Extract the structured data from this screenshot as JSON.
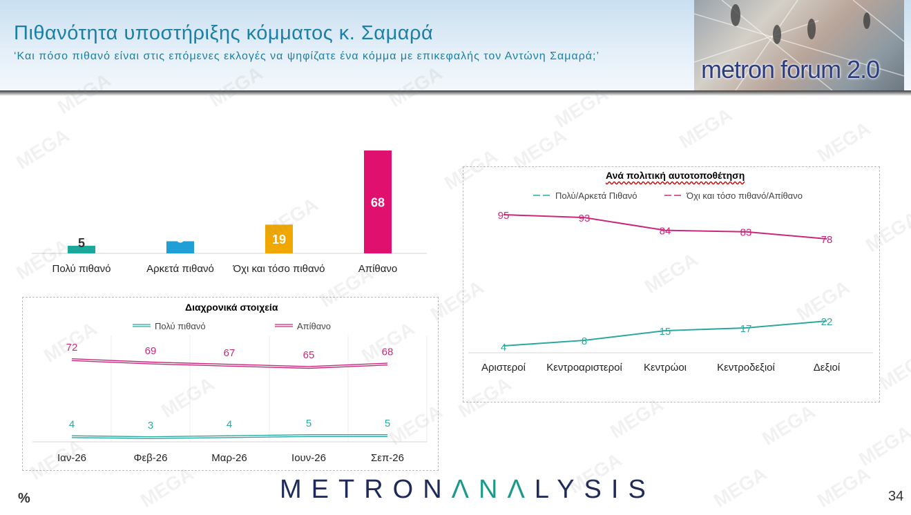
{
  "title": "Πιθανότητα υποστήριξης κόμματος κ. Σαμαρά",
  "subtitle": "‘Και πόσο πιθανό είναι στις επόμενες εκλογές να ψηφίζατε ένα κόμμα με επικεφαλής τον Αντώνη Σαμαρά;’",
  "logo_text": "metron forum 2.0",
  "brand": {
    "part1": "METRON",
    "part2": "ΛNΛ",
    "part3": "LYSIS"
  },
  "percent_sign": "%",
  "page_number": "34",
  "watermark": "MEGA",
  "chart_data": [
    {
      "type": "bar",
      "title": "",
      "categories": [
        "Πολύ πιθανό",
        "Αρκετά πιθανό",
        "Όχι και τόσο πιθανό",
        "Απίθανο"
      ],
      "values": [
        5,
        8,
        19,
        68
      ],
      "colors": [
        "#1aa89a",
        "#1f9fd6",
        "#f0a800",
        "#e0106e"
      ],
      "ylim": [
        0,
        68
      ]
    },
    {
      "type": "line",
      "title": "Διαχρονικά στοιχεία",
      "categories": [
        "Ιαν-26",
        "Φεβ-26",
        "Μαρ-26",
        "Ιουν-26",
        "Σεπ-26"
      ],
      "series": [
        {
          "name": "Πολύ πιθανό",
          "values": [
            4,
            3,
            4,
            5,
            5
          ],
          "color": "#2aa8a0"
        },
        {
          "name": "Απίθανο",
          "values": [
            72,
            69,
            67,
            65,
            68
          ],
          "color": "#c8287a"
        }
      ],
      "grid": "vertical",
      "legend": "top"
    },
    {
      "type": "line",
      "title": "Ανά πολιτική αυτοτοποθέτηση",
      "categories": [
        "Αριστεροί",
        "Κεντροαριστεροί",
        "Κεντρώοι",
        "Κεντροδεξιοί",
        "Δεξιοί"
      ],
      "series": [
        {
          "name": "Πολύ/Αρκετά Πιθανό",
          "values": [
            4,
            8,
            15,
            17,
            22
          ],
          "color": "#2aa8a0"
        },
        {
          "name": "Όχι και τόσο πιθανό/Απίθανο",
          "values": [
            95,
            93,
            84,
            83,
            78
          ],
          "color": "#c8287a"
        }
      ],
      "legend": "top"
    }
  ]
}
